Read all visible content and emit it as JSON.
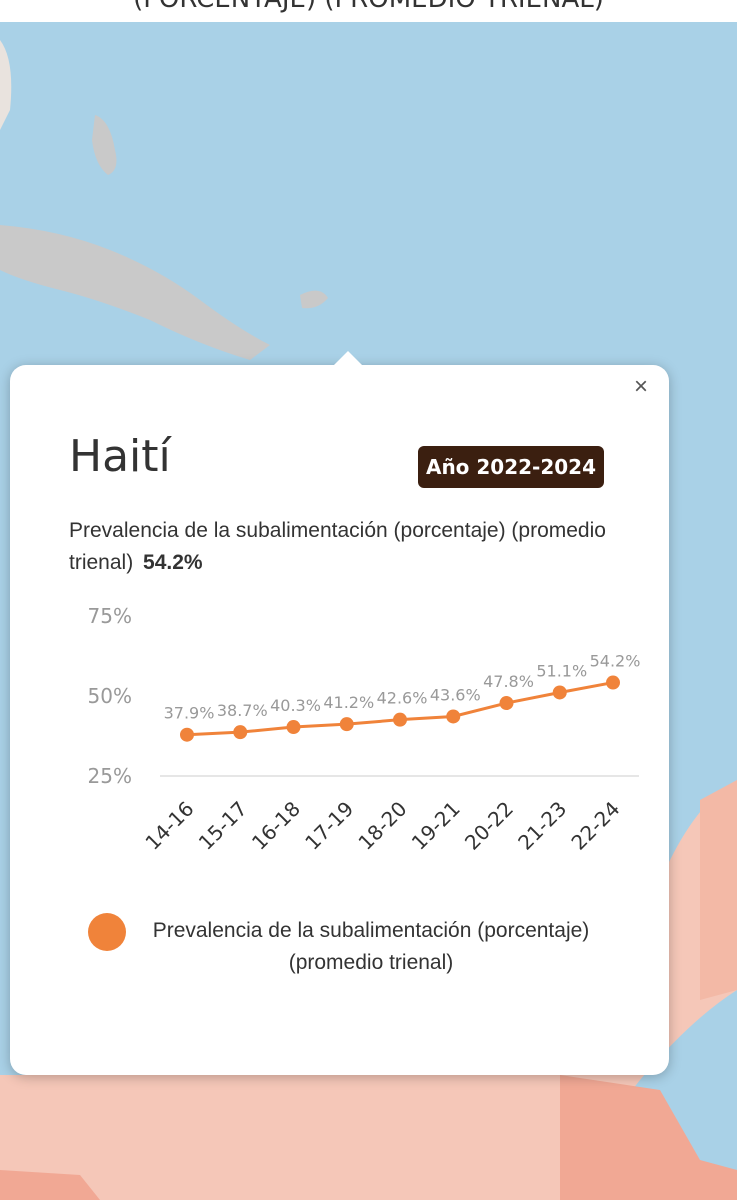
{
  "header": {
    "title_fragment": "(PORCENTAJE) (PROMEDIO TRIENAL)"
  },
  "popup": {
    "close_label": "×",
    "country": "Haití",
    "year_badge": "Año 2022-2024",
    "indicator_label": "Prevalencia de la subalimentación (porcentaje) (promedio trienal)",
    "indicator_value": "54.2%",
    "legend_label": "Prevalencia de la subalimentación (porcentaje) (promedio trienal)"
  },
  "colors": {
    "series": "#f0833a",
    "badge_bg": "#3b1f10",
    "sea": "#a9d1e7",
    "land_grey": "#c9c9c9",
    "land_pink": "#f5c7b8"
  },
  "chart_data": {
    "type": "line",
    "categories": [
      "14-16",
      "15-17",
      "16-18",
      "17-19",
      "18-20",
      "19-21",
      "20-22",
      "21-23",
      "22-24"
    ],
    "series": [
      {
        "name": "Prevalencia de la subalimentación (porcentaje) (promedio trienal)",
        "values": [
          37.9,
          38.7,
          40.3,
          41.2,
          42.6,
          43.6,
          47.8,
          51.1,
          54.2
        ],
        "labels": [
          "37.9%",
          "38.7%",
          "40.3%",
          "41.2%",
          "42.6%",
          "43.6%",
          "47.8%",
          "51.1%",
          "54.2%"
        ]
      }
    ],
    "y_ticks": [
      25,
      50,
      75
    ],
    "y_tick_labels": [
      "25%",
      "50%",
      "75%"
    ],
    "ylim": [
      25,
      75
    ],
    "grid": false,
    "legend_position": "bottom"
  }
}
